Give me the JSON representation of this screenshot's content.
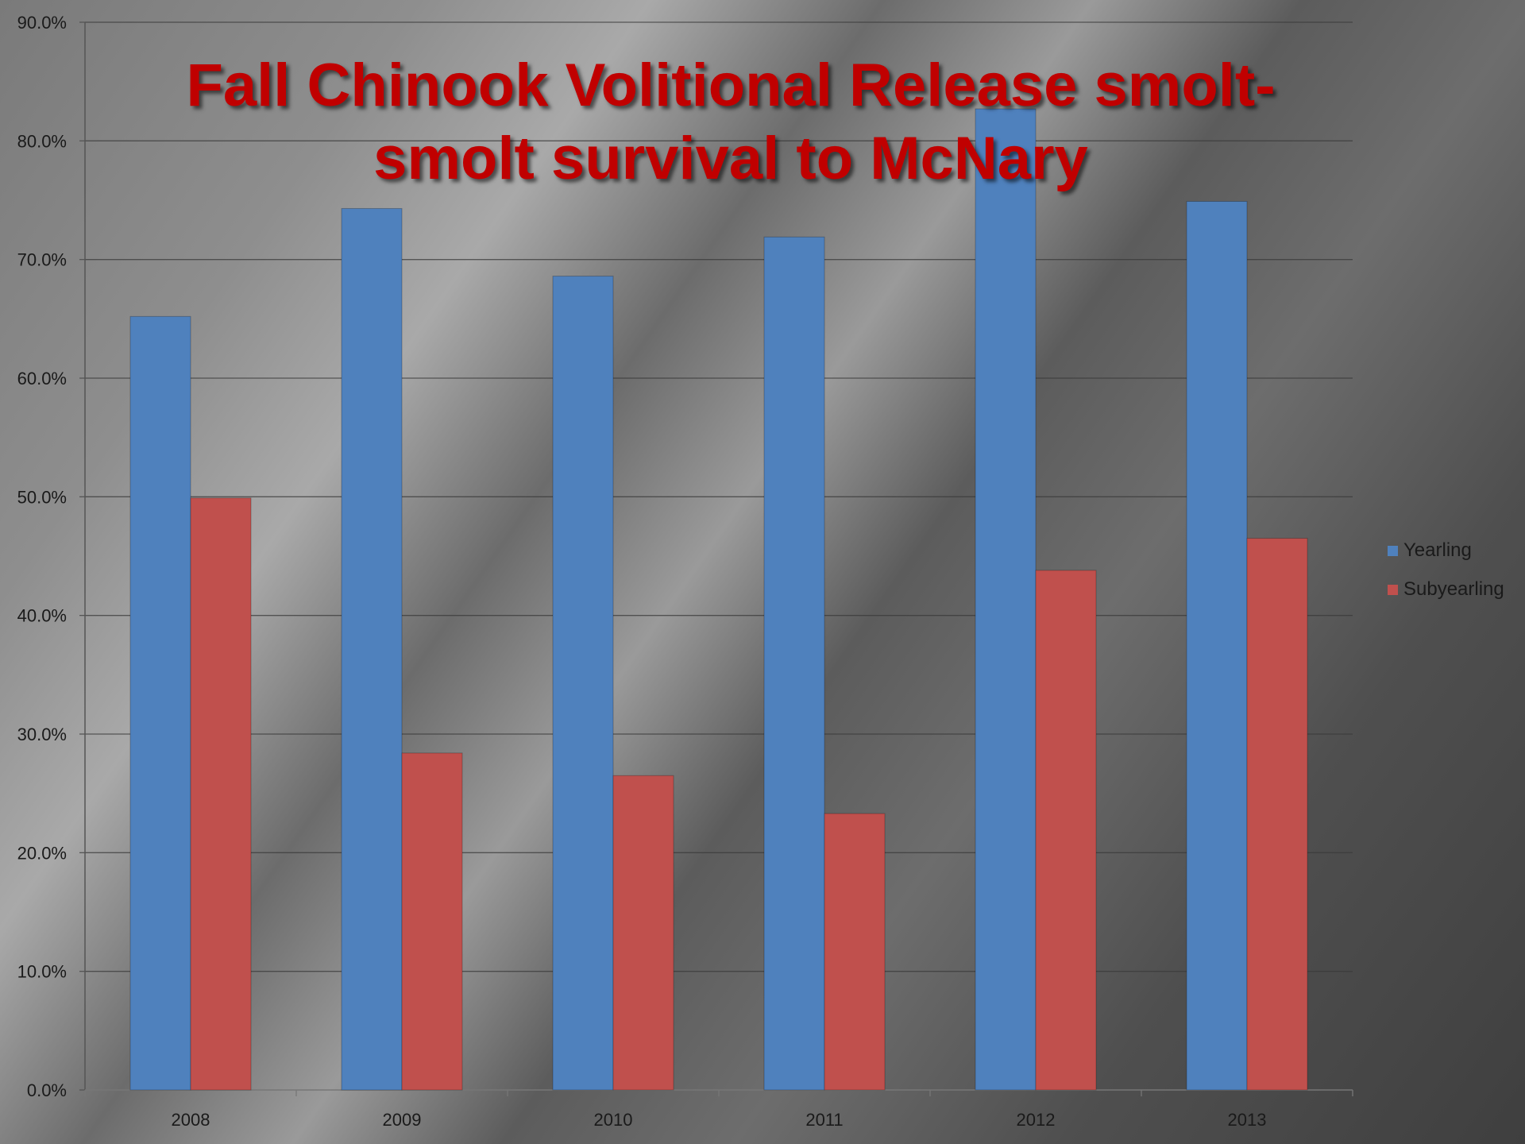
{
  "chart_data": {
    "type": "bar",
    "title": "Fall Chinook Volitional Release smolt-smolt survival to McNary",
    "xlabel": "",
    "ylabel": "",
    "categories": [
      "2008",
      "2009",
      "2010",
      "2011",
      "2012",
      "2013"
    ],
    "series": [
      {
        "name": "Yearling",
        "color": "#4f81bd",
        "values": [
          65.2,
          74.3,
          68.6,
          71.9,
          82.7,
          74.9
        ]
      },
      {
        "name": "Subyearling",
        "color": "#c0504d",
        "values": [
          49.9,
          28.4,
          26.5,
          23.3,
          43.8,
          46.5
        ]
      }
    ],
    "ylim": [
      0,
      90
    ],
    "yticks": [
      "0.0%",
      "10.0%",
      "20.0%",
      "30.0%",
      "40.0%",
      "50.0%",
      "60.0%",
      "70.0%",
      "80.0%",
      "90.0%"
    ],
    "grid": true,
    "legend_position": "right"
  }
}
